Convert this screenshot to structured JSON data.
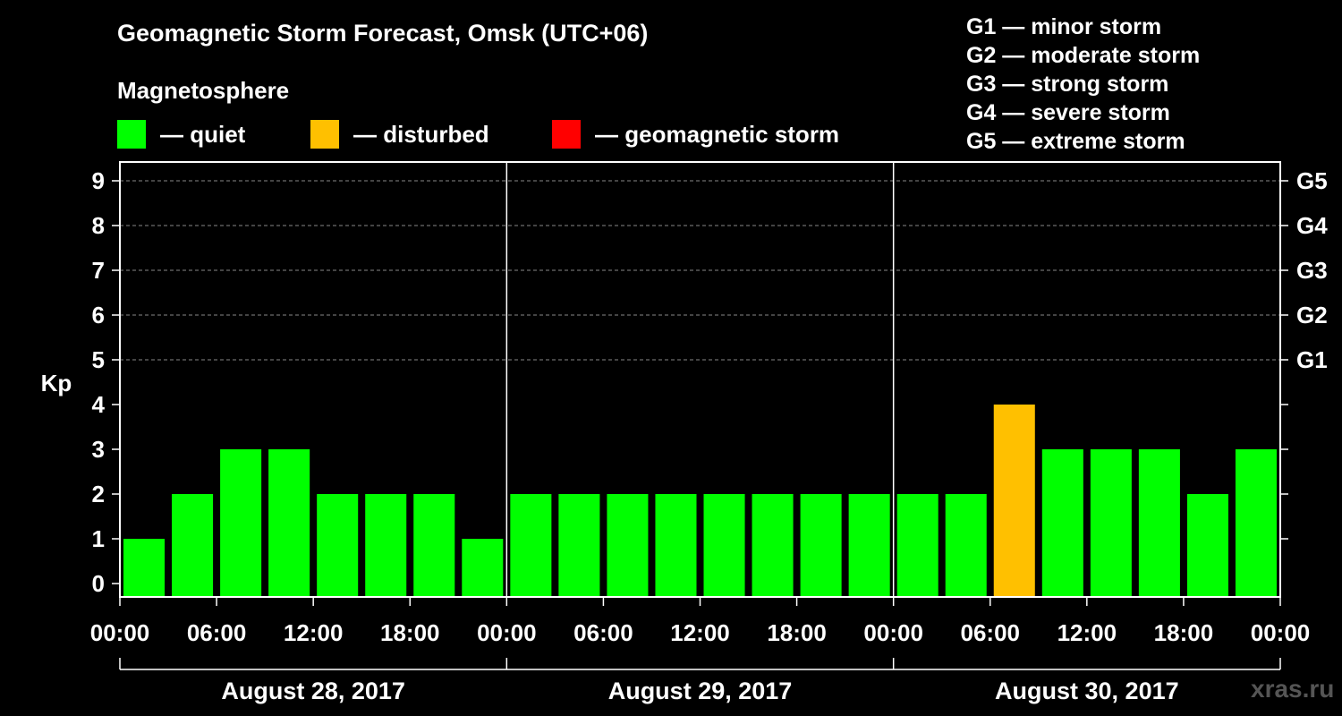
{
  "title": "Geomagnetic Storm Forecast, Omsk (UTC+06)",
  "subtitle": "Magnetosphere",
  "legend": [
    {
      "label": "— quiet",
      "color": "#00ff00"
    },
    {
      "label": "— disturbed",
      "color": "#ffc000"
    },
    {
      "label": "— geomagnetic storm",
      "color": "#ff0000"
    }
  ],
  "g_legend": [
    "G1 — minor storm",
    "G2 — moderate storm",
    "G3 — strong storm",
    "G4 — severe storm",
    "G5 — extreme storm"
  ],
  "watermark": "xras.ru",
  "chart_data": {
    "type": "bar",
    "title": "Geomagnetic Storm Forecast, Omsk (UTC+06)",
    "ylabel": "Kp",
    "ylim": [
      0,
      9
    ],
    "y_ticks": [
      "0",
      "1",
      "2",
      "3",
      "4",
      "5",
      "6",
      "7",
      "8",
      "9"
    ],
    "g_scale": [
      {
        "kp": 5,
        "label": "G1"
      },
      {
        "kp": 6,
        "label": "G2"
      },
      {
        "kp": 7,
        "label": "G3"
      },
      {
        "kp": 8,
        "label": "G4"
      },
      {
        "kp": 9,
        "label": "G5"
      }
    ],
    "x_tick_labels": [
      "00:00",
      "06:00",
      "12:00",
      "18:00",
      "00:00",
      "06:00",
      "12:00",
      "18:00",
      "00:00",
      "06:00",
      "12:00",
      "18:00",
      "00:00"
    ],
    "days": [
      "August 28, 2017",
      "August 29, 2017",
      "August 30, 2017"
    ],
    "colors": {
      "quiet": "#00ff00",
      "disturbed": "#ffc000",
      "storm": "#ff0000"
    },
    "values": [
      1,
      2,
      3,
      3,
      2,
      2,
      2,
      1,
      2,
      2,
      2,
      2,
      2,
      2,
      2,
      2,
      2,
      2,
      4,
      3,
      3,
      3,
      2,
      3
    ]
  }
}
